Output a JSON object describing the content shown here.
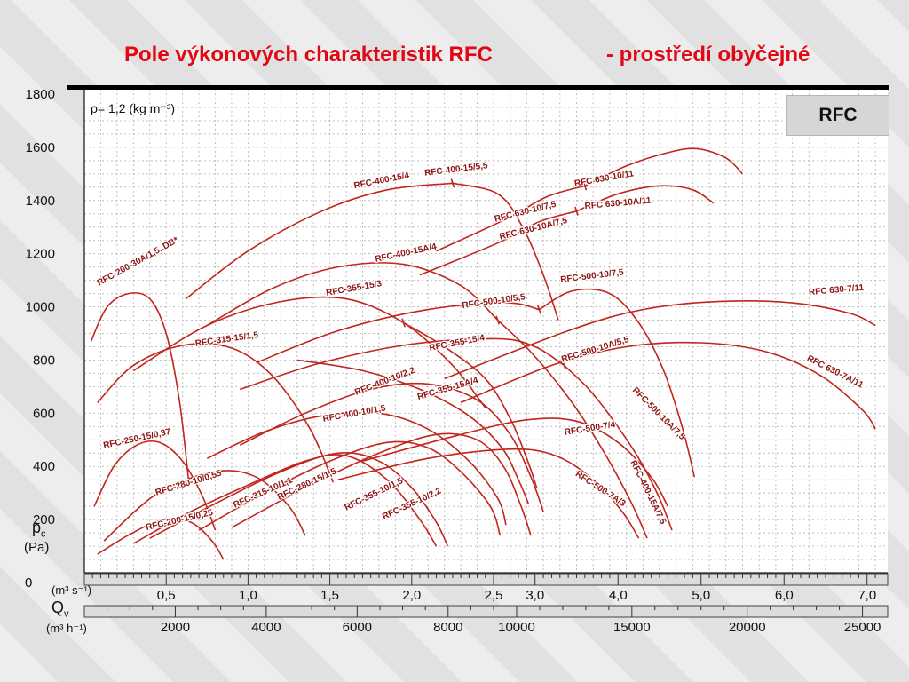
{
  "title": {
    "main": "Pole výkonových charakteristik RFC",
    "suffix": "- prostředí obyčejné"
  },
  "badge": "RFC",
  "annotations": {
    "density": "ρ= 1,2 (kg m⁻³)"
  },
  "axis_captions": {
    "y_name": "p",
    "y_sub": "c",
    "y_unit": "(Pa)",
    "y_zero": "0",
    "x1_unit": "(m³ s⁻¹)",
    "x2_name": "Q",
    "x2_sub": "v",
    "x2_unit": "(m³ h⁻¹)"
  },
  "colors": {
    "accent_red": "#e30613",
    "curve_red": "#c1251d",
    "label_red": "#8c1310",
    "grid_gray": "#c0c0c0",
    "strip_gray": "#dcdcdc"
  },
  "chart_data": {
    "type": "line",
    "title": "Pole výkonových charakteristik RFC - prostředí obyčejné",
    "ylabel": "pc (Pa)",
    "xlabel": "Qv (m³ s⁻¹) / (m³ h⁻¹)",
    "ylim": [
      0,
      1800
    ],
    "xlim_m3s": [
      0,
      7.2
    ],
    "x_scale_note": "x axis linear to 2,5 m³/s, compressed 2x above 2,5 m³/s",
    "grid": "fine dashed grid on",
    "y_ticks": [
      1800,
      1600,
      1400,
      1200,
      1000,
      800,
      600,
      400,
      200
    ],
    "x_ticks_m3s": [
      {
        "v": 0.5,
        "t": "0,5"
      },
      {
        "v": 1.0,
        "t": "1,0"
      },
      {
        "v": 1.5,
        "t": "1,5"
      },
      {
        "v": 2.0,
        "t": "2,0"
      },
      {
        "v": 2.5,
        "t": "2,5"
      },
      {
        "v": 3.0,
        "t": "3,0"
      },
      {
        "v": 4.0,
        "t": "4,0"
      },
      {
        "v": 5.0,
        "t": "5,0"
      },
      {
        "v": 6.0,
        "t": "6,0"
      },
      {
        "v": 7.0,
        "t": "7,0"
      }
    ],
    "x_ticks_m3h": [
      2000,
      4000,
      6000,
      8000,
      10000,
      15000,
      20000,
      25000
    ],
    "curves": [
      {
        "label": "RFC-200-30A/1,5..DB*",
        "points": [
          [
            0.04,
            870
          ],
          [
            0.14,
            1000
          ],
          [
            0.27,
            1050
          ],
          [
            0.4,
            1030
          ],
          [
            0.5,
            900
          ],
          [
            0.58,
            650
          ],
          [
            0.64,
            330
          ]
        ],
        "label_at": [
          0.09,
          1079
        ],
        "label_rot": -29
      },
      {
        "label": "RFC-250-15/0,37",
        "points": [
          [
            0.06,
            250
          ],
          [
            0.18,
            400
          ],
          [
            0.32,
            480
          ],
          [
            0.46,
            490
          ],
          [
            0.6,
            420
          ],
          [
            0.72,
            290
          ],
          [
            0.8,
            160
          ]
        ],
        "label_at": [
          0.12,
          468
        ],
        "label_rot": -12
      },
      {
        "label": "RFC-200-15/0,25",
        "points": [
          [
            0.08,
            70
          ],
          [
            0.28,
            145
          ],
          [
            0.48,
            200
          ],
          [
            0.65,
            190
          ],
          [
            0.78,
            120
          ],
          [
            0.85,
            50
          ]
        ],
        "label_at": [
          0.38,
          160
        ],
        "label_rot": -13
      },
      {
        "label": "RFC-280-10/0,55",
        "points": [
          [
            0.12,
            120
          ],
          [
            0.45,
            300
          ],
          [
            0.8,
            380
          ],
          [
            1.05,
            360
          ],
          [
            1.25,
            250
          ],
          [
            1.35,
            140
          ]
        ],
        "label_at": [
          0.44,
          291
        ],
        "label_rot": -17
      },
      {
        "label": "RFC-315-10/1,1",
        "points": [
          [
            0.3,
            110
          ],
          [
            0.65,
            230
          ],
          [
            1.0,
            330
          ],
          [
            1.35,
            420
          ],
          [
            1.6,
            440
          ],
          [
            1.85,
            350
          ],
          [
            2.05,
            200
          ],
          [
            2.15,
            100
          ]
        ],
        "label_at": [
          0.92,
          244
        ],
        "label_rot": -24
      },
      {
        "label": "RFC-280-15/1,5",
        "points": [
          [
            0.4,
            130
          ],
          [
            0.8,
            260
          ],
          [
            1.2,
            380
          ],
          [
            1.55,
            450
          ],
          [
            1.8,
            420
          ],
          [
            2.0,
            320
          ],
          [
            2.15,
            190
          ],
          [
            2.22,
            100
          ]
        ],
        "label_at": [
          1.19,
          274
        ],
        "label_rot": -25
      },
      {
        "label": "RFC-355-10/1,5",
        "points": [
          [
            0.7,
            160
          ],
          [
            1.1,
            300
          ],
          [
            1.5,
            420
          ],
          [
            1.85,
            490
          ],
          [
            2.1,
            470
          ],
          [
            2.3,
            380
          ],
          [
            2.48,
            250
          ],
          [
            2.58,
            140
          ]
        ],
        "label_at": [
          1.6,
          234
        ],
        "label_rot": -26
      },
      {
        "label": "RFC-355-10/2,2",
        "points": [
          [
            0.9,
            170
          ],
          [
            1.35,
            320
          ],
          [
            1.8,
            450
          ],
          [
            2.15,
            520
          ],
          [
            2.4,
            500
          ],
          [
            2.62,
            400
          ],
          [
            2.82,
            260
          ],
          [
            2.95,
            140
          ]
        ],
        "label_at": [
          1.83,
          200
        ],
        "label_rot": -25
      },
      {
        "label": "RFC-315-15/1,5",
        "points": [
          [
            0.08,
            640
          ],
          [
            0.3,
            780
          ],
          [
            0.6,
            855
          ],
          [
            0.9,
            845
          ],
          [
            1.15,
            740
          ],
          [
            1.38,
            540
          ],
          [
            1.52,
            340
          ]
        ],
        "label_at": [
          0.68,
          852
        ],
        "label_rot": -8
      },
      {
        "label": "RFC-400-10/1,5",
        "points": [
          [
            0.75,
            430
          ],
          [
            1.1,
            530
          ],
          [
            1.45,
            590
          ],
          [
            1.8,
            600
          ],
          [
            2.1,
            540
          ],
          [
            2.35,
            420
          ],
          [
            2.55,
            280
          ],
          [
            2.65,
            180
          ]
        ],
        "label_at": [
          1.46,
          568
        ],
        "label_rot": -10
      },
      {
        "label": "RFC-400-10/2,2",
        "points": [
          [
            0.95,
            480
          ],
          [
            1.35,
            600
          ],
          [
            1.75,
            690
          ],
          [
            2.1,
            710
          ],
          [
            2.4,
            650
          ],
          [
            2.7,
            520
          ],
          [
            2.95,
            360
          ],
          [
            3.1,
            230
          ]
        ],
        "label_at": [
          1.66,
          668
        ],
        "label_rot": -21
      },
      {
        "label": "RFC-355-15/3",
        "points": [
          [
            0.3,
            760
          ],
          [
            0.75,
            930
          ],
          [
            1.2,
            1020
          ],
          [
            1.6,
            1030
          ],
          [
            1.95,
            940
          ],
          [
            2.25,
            780
          ],
          [
            2.45,
            620
          ]
        ],
        "label_at": [
          1.48,
          1042
        ],
        "label_rot": -10
      },
      {
        "label": "RFC-355-15/4",
        "points": [
          [
            1.95,
            940
          ],
          [
            2.2,
            850
          ],
          [
            2.45,
            730
          ],
          [
            2.7,
            580
          ],
          [
            2.9,
            430
          ],
          [
            3.02,
            320
          ]
        ],
        "label_at": [
          2.11,
          835
        ],
        "label_rot": -11
      },
      {
        "label": "RFC-355-15A/4",
        "points": [
          [
            1.3,
            800
          ],
          [
            1.7,
            760
          ],
          [
            2.05,
            690
          ],
          [
            2.35,
            590
          ],
          [
            2.6,
            470
          ],
          [
            2.8,
            350
          ],
          [
            2.92,
            260
          ]
        ],
        "label_at": [
          2.04,
          651
        ],
        "label_rot": -16
      },
      {
        "label": "RFC-400-15A/4",
        "points": [
          [
            0.75,
            930
          ],
          [
            1.15,
            1070
          ],
          [
            1.55,
            1150
          ],
          [
            1.95,
            1160
          ],
          [
            2.3,
            1080
          ],
          [
            2.55,
            950
          ]
        ],
        "label_at": [
          1.78,
          1169
        ],
        "label_rot": -12
      },
      {
        "label": "RFC-400-15A/7,5",
        "points": [
          [
            2.55,
            950
          ],
          [
            2.95,
            830
          ],
          [
            3.4,
            660
          ],
          [
            3.8,
            470
          ],
          [
            4.15,
            270
          ],
          [
            4.35,
            130
          ]
        ],
        "label_at": [
          4.15,
          417
        ],
        "label_rot": 64
      },
      {
        "label": "RFC-400-15/4",
        "points": [
          [
            0.62,
            1030
          ],
          [
            1.0,
            1210
          ],
          [
            1.45,
            1360
          ],
          [
            1.85,
            1440
          ],
          [
            2.25,
            1465
          ]
        ],
        "label_at": [
          1.65,
          1445
        ],
        "label_rot": -11
      },
      {
        "label": "RFC-400-15/5,5",
        "points": [
          [
            2.25,
            1465
          ],
          [
            2.55,
            1425
          ],
          [
            2.85,
            1300
          ],
          [
            3.1,
            1120
          ],
          [
            3.28,
            950
          ]
        ],
        "label_at": [
          2.08,
          1493
        ],
        "label_rot": -7
      },
      {
        "label": "RFC-500-10/5,5",
        "points": [
          [
            1.05,
            790
          ],
          [
            1.55,
            910
          ],
          [
            2.1,
            990
          ],
          [
            2.65,
            1015
          ],
          [
            3.05,
            990
          ]
        ],
        "label_at": [
          2.31,
          995
        ],
        "label_rot": -8
      },
      {
        "label": "RFC-500-10/7,5",
        "points": [
          [
            3.05,
            990
          ],
          [
            3.45,
            1060
          ],
          [
            3.9,
            1050
          ],
          [
            4.25,
            940
          ],
          [
            4.55,
            760
          ],
          [
            4.78,
            540
          ],
          [
            4.92,
            360
          ]
        ],
        "label_at": [
          3.31,
          1092
        ],
        "label_rot": -7
      },
      {
        "label": "RFC-500-10A/5,5",
        "points": [
          [
            0.95,
            690
          ],
          [
            1.45,
            790
          ],
          [
            2.0,
            860
          ],
          [
            2.55,
            880
          ],
          [
            3.0,
            850
          ],
          [
            3.35,
            780
          ]
        ],
        "label_at": [
          3.33,
          792
        ],
        "label_rot": -17
      },
      {
        "label": "RFC-500-10A/7,5",
        "points": [
          [
            3.35,
            780
          ],
          [
            3.65,
            690
          ],
          [
            3.95,
            570
          ],
          [
            4.25,
            430
          ],
          [
            4.5,
            280
          ],
          [
            4.65,
            160
          ]
        ],
        "label_at": [
          4.17,
          685
        ],
        "label_rot": 45
      },
      {
        "label": "RFC-500-7/4",
        "points": [
          [
            1.7,
            420
          ],
          [
            2.3,
            520
          ],
          [
            2.9,
            575
          ],
          [
            3.5,
            570
          ],
          [
            4.0,
            490
          ],
          [
            4.4,
            360
          ],
          [
            4.6,
            250
          ]
        ],
        "label_at": [
          3.36,
          518
        ],
        "label_rot": -9
      },
      {
        "label": "RFC-500-7A/3",
        "points": [
          [
            1.55,
            350
          ],
          [
            2.1,
            430
          ],
          [
            2.7,
            465
          ],
          [
            3.25,
            440
          ],
          [
            3.7,
            350
          ],
          [
            4.05,
            230
          ],
          [
            4.25,
            130
          ]
        ],
        "label_at": [
          3.48,
          367
        ],
        "label_rot": 33
      },
      {
        "label": "RFC 630-10/7,5",
        "points": [
          [
            2.15,
            1210
          ],
          [
            2.65,
            1330
          ],
          [
            3.15,
            1415
          ],
          [
            3.6,
            1455
          ]
        ],
        "label_at": [
          2.52,
          1320
        ],
        "label_rot": -14
      },
      {
        "label": "RFC 630-10/11",
        "points": [
          [
            3.6,
            1455
          ],
          [
            4.1,
            1530
          ],
          [
            4.6,
            1580
          ],
          [
            4.95,
            1595
          ],
          [
            5.3,
            1560
          ],
          [
            5.5,
            1500
          ]
        ],
        "label_at": [
          3.48,
          1453
        ],
        "label_rot": -10
      },
      {
        "label": "RFC 630-10A/7,5",
        "points": [
          [
            2.05,
            1120
          ],
          [
            2.55,
            1240
          ],
          [
            3.05,
            1320
          ],
          [
            3.5,
            1360
          ]
        ],
        "label_at": [
          2.58,
          1253
        ],
        "label_rot": -14
      },
      {
        "label": "RFC 630-10A/11",
        "points": [
          [
            3.5,
            1360
          ],
          [
            4.0,
            1425
          ],
          [
            4.5,
            1455
          ],
          [
            4.9,
            1440
          ],
          [
            5.15,
            1390
          ]
        ],
        "label_at": [
          3.6,
          1369
        ],
        "label_rot": -5
      },
      {
        "label": "RFC 630-7/11",
        "points": [
          [
            2.2,
            730
          ],
          [
            3.4,
            910
          ],
          [
            4.3,
            990
          ],
          [
            5.2,
            1020
          ],
          [
            6.1,
            1015
          ],
          [
            6.8,
            975
          ],
          [
            7.1,
            930
          ]
        ],
        "label_at": [
          6.3,
          1045
        ],
        "label_rot": -5
      },
      {
        "label": "RFC 630-7A/11",
        "points": [
          [
            2.3,
            640
          ],
          [
            3.2,
            780
          ],
          [
            4.1,
            850
          ],
          [
            5.0,
            865
          ],
          [
            5.8,
            830
          ],
          [
            6.45,
            740
          ],
          [
            6.95,
            610
          ],
          [
            7.1,
            540
          ]
        ],
        "label_at": [
          6.27,
          800
        ],
        "label_rot": 27
      }
    ],
    "junction_ticks": [
      [
        2.25,
        1465
      ],
      [
        3.6,
        1455
      ],
      [
        3.5,
        1360
      ],
      [
        3.05,
        990
      ],
      [
        1.95,
        940
      ],
      [
        2.55,
        950
      ],
      [
        3.35,
        780
      ]
    ]
  }
}
